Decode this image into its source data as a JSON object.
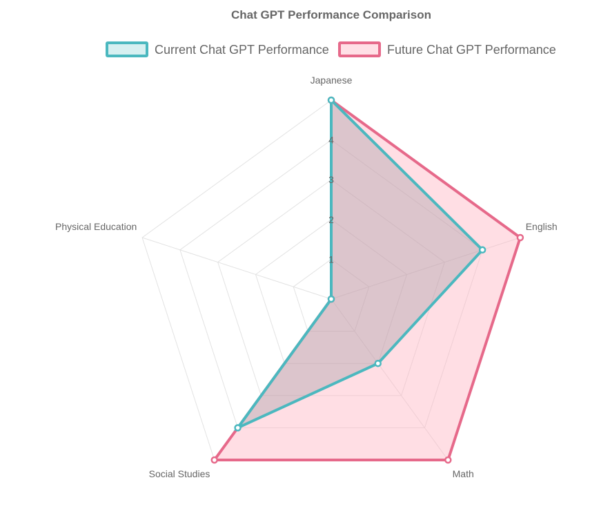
{
  "chart_data": {
    "type": "radar",
    "title": "Chat GPT Performance Comparison",
    "categories": [
      "Japanese",
      "English",
      "Math",
      "Social Studies",
      "Physical Education"
    ],
    "scale": {
      "min": 0,
      "max": 5,
      "ticks": [
        "1",
        "2",
        "3",
        "4",
        "5"
      ]
    },
    "grid": true,
    "legend_position": "top",
    "series": [
      {
        "name": "Current Chat GPT Performance",
        "values": [
          5,
          4,
          2,
          4,
          0
        ],
        "border_color": "#4BB8BF",
        "fill_color": "#D7F0F1",
        "area_fill": "rgba(140,140,150,0.30)"
      },
      {
        "name": "Future Chat GPT Performance",
        "values": [
          5,
          5,
          5,
          5,
          0
        ],
        "border_color": "#E6698A",
        "fill_color": "#FFE0E6",
        "area_fill": "rgba(255,182,196,0.45)"
      }
    ]
  }
}
